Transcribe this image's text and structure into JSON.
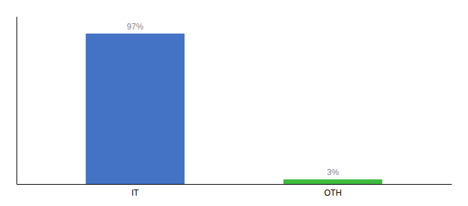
{
  "chart_data": {
    "type": "bar",
    "categories": [
      "IT",
      "OTH"
    ],
    "values": [
      97,
      3
    ],
    "value_labels": [
      "97%",
      "3%"
    ],
    "colors": [
      "#4472c4",
      "#3dbb3d"
    ],
    "ylim": [
      0,
      108
    ],
    "data_labels": true,
    "tick_labels": "x"
  }
}
